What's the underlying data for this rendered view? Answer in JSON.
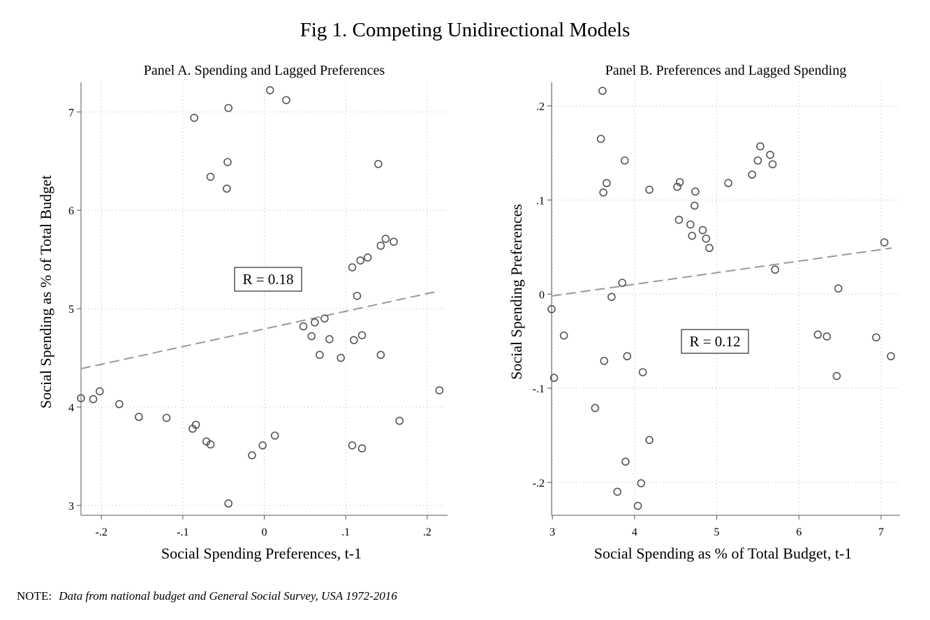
{
  "figure": {
    "title": "Fig 1. Competing Unidirectional Models",
    "note_label": "NOTE:",
    "note_text": "Data from national budget and General Social Survey, USA 1972-2016",
    "colors": {
      "marker": "#555555",
      "fit_line": "#999999",
      "grid": "#b5b5b5",
      "axis": "#555555"
    }
  },
  "chart_data": [
    {
      "type": "scatter",
      "title": "Panel A. Spending and Lagged Preferences",
      "xlabel": "Social Spending Preferences, t-1",
      "ylabel": "Social Spending as % of Total Budget",
      "xlim": [
        -0.225,
        0.225
      ],
      "ylim": [
        2.9,
        7.3
      ],
      "xticks": [
        -0.2,
        -0.1,
        0,
        0.1,
        0.2
      ],
      "xtick_labels": [
        "-.2",
        "-.1",
        "0",
        ".1",
        ".2"
      ],
      "yticks": [
        3,
        4,
        5,
        6,
        7
      ],
      "ytick_labels": [
        "3",
        "4",
        "5",
        "6",
        "7"
      ],
      "grid": true,
      "annotation": "R = 0.18",
      "fit_line": {
        "x": [
          -0.225,
          0.215
        ],
        "y": [
          4.39,
          5.18
        ],
        "style": "dashed"
      },
      "points": [
        [
          -0.225,
          4.09
        ],
        [
          -0.21,
          4.08
        ],
        [
          -0.202,
          4.16
        ],
        [
          -0.178,
          4.03
        ],
        [
          -0.154,
          3.9
        ],
        [
          -0.12,
          3.89
        ],
        [
          -0.088,
          3.78
        ],
        [
          -0.084,
          3.82
        ],
        [
          -0.071,
          3.65
        ],
        [
          -0.066,
          3.62
        ],
        [
          -0.086,
          6.94
        ],
        [
          -0.066,
          6.34
        ],
        [
          -0.044,
          7.04
        ],
        [
          -0.045,
          6.49
        ],
        [
          -0.046,
          6.22
        ],
        [
          0.007,
          7.22
        ],
        [
          0.027,
          7.12
        ],
        [
          -0.015,
          3.51
        ],
        [
          -0.002,
          3.61
        ],
        [
          0.013,
          3.71
        ],
        [
          -0.044,
          3.02
        ],
        [
          0.048,
          4.82
        ],
        [
          0.058,
          4.72
        ],
        [
          0.062,
          4.86
        ],
        [
          0.068,
          4.53
        ],
        [
          0.074,
          4.9
        ],
        [
          0.08,
          4.69
        ],
        [
          0.094,
          4.5
        ],
        [
          0.108,
          5.42
        ],
        [
          0.114,
          5.13
        ],
        [
          0.118,
          5.49
        ],
        [
          0.127,
          5.52
        ],
        [
          0.11,
          4.68
        ],
        [
          0.12,
          4.73
        ],
        [
          0.108,
          3.61
        ],
        [
          0.12,
          3.58
        ],
        [
          0.14,
          6.47
        ],
        [
          0.143,
          5.64
        ],
        [
          0.149,
          5.71
        ],
        [
          0.159,
          5.68
        ],
        [
          0.143,
          4.53
        ],
        [
          0.166,
          3.86
        ],
        [
          0.215,
          4.17
        ]
      ]
    },
    {
      "type": "scatter",
      "title": "Panel B. Preferences and Lagged Spending",
      "xlabel": "Social Spending as % of Total Budget, t-1",
      "ylabel": "Social Spending Preferences",
      "xlim": [
        2.99,
        7.23
      ],
      "ylim": [
        -0.235,
        0.225
      ],
      "xticks": [
        3,
        4,
        5,
        6,
        7
      ],
      "xtick_labels": [
        "3",
        "4",
        "5",
        "6",
        "7"
      ],
      "yticks": [
        -0.2,
        -0.1,
        0,
        0.1,
        0.2
      ],
      "ytick_labels": [
        "-.2",
        "-.1",
        "0",
        ".1",
        ".2"
      ],
      "grid": true,
      "annotation": "R = 0.12",
      "fit_line": {
        "x": [
          2.99,
          7.13
        ],
        "y": [
          -0.002,
          0.049
        ],
        "style": "dashed"
      },
      "points": [
        [
          2.99,
          -0.016
        ],
        [
          3.02,
          -0.089
        ],
        [
          3.14,
          -0.044
        ],
        [
          3.52,
          -0.121
        ],
        [
          3.59,
          0.165
        ],
        [
          3.61,
          0.216
        ],
        [
          3.62,
          0.108
        ],
        [
          3.63,
          -0.071
        ],
        [
          3.66,
          0.118
        ],
        [
          3.72,
          -0.003
        ],
        [
          3.79,
          -0.21
        ],
        [
          3.85,
          0.012
        ],
        [
          3.88,
          0.142
        ],
        [
          3.89,
          -0.178
        ],
        [
          3.91,
          -0.066
        ],
        [
          4.04,
          -0.225
        ],
        [
          4.08,
          -0.201
        ],
        [
          4.1,
          -0.083
        ],
        [
          4.18,
          -0.155
        ],
        [
          4.18,
          0.111
        ],
        [
          4.52,
          0.114
        ],
        [
          4.54,
          0.079
        ],
        [
          4.55,
          0.119
        ],
        [
          4.68,
          0.074
        ],
        [
          4.7,
          0.062
        ],
        [
          4.73,
          0.094
        ],
        [
          4.74,
          0.109
        ],
        [
          4.83,
          0.068
        ],
        [
          4.87,
          0.059
        ],
        [
          4.91,
          0.049
        ],
        [
          5.14,
          0.118
        ],
        [
          5.43,
          0.127
        ],
        [
          5.5,
          0.142
        ],
        [
          5.53,
          0.157
        ],
        [
          5.65,
          0.148
        ],
        [
          5.68,
          0.138
        ],
        [
          5.71,
          0.026
        ],
        [
          6.23,
          -0.043
        ],
        [
          6.34,
          -0.045
        ],
        [
          6.46,
          -0.087
        ],
        [
          6.48,
          0.006
        ],
        [
          6.94,
          -0.046
        ],
        [
          7.04,
          0.055
        ],
        [
          7.12,
          -0.066
        ]
      ]
    }
  ]
}
